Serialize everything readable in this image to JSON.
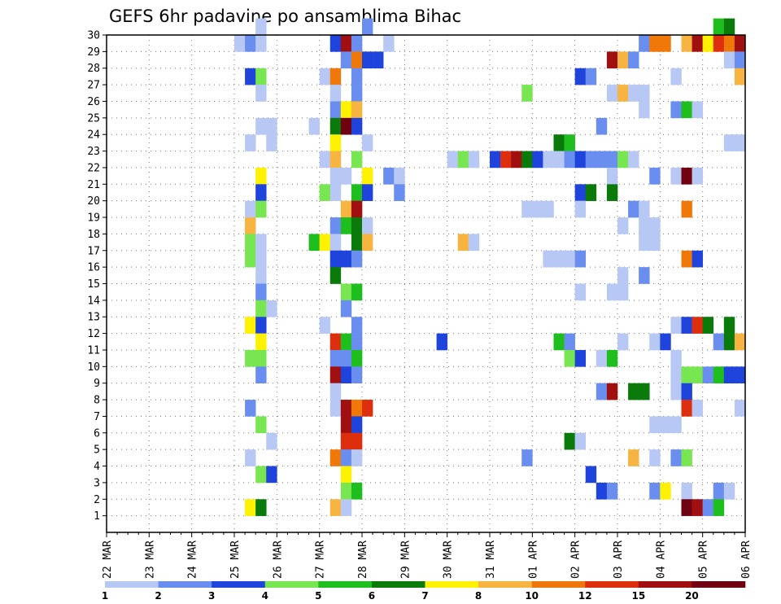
{
  "chart_data": {
    "type": "heatmap",
    "title": "GEFS 6hr padavine po ansamblima Bihac",
    "xlabel": "",
    "ylabel": "",
    "x_axis": {
      "unit": "6-hour step from 22 MAR 00Z",
      "range": [
        0,
        60
      ],
      "tick_labels": [
        "22 MAR",
        "23 MAR",
        "24 MAR",
        "25 MAR",
        "26 MAR",
        "27 MAR",
        "28 MAR",
        "29 MAR",
        "30 MAR",
        "31 MAR",
        "01 APR",
        "02 APR",
        "03 APR",
        "04 APR",
        "05 APR",
        "06 APR"
      ]
    },
    "y_axis": {
      "unit": "ensemble member",
      "range": [
        0,
        30
      ],
      "tick_labels": [
        "1",
        "2",
        "3",
        "4",
        "5",
        "6",
        "7",
        "8",
        "9",
        "10",
        "11",
        "12",
        "13",
        "14",
        "15",
        "16",
        "17",
        "18",
        "19",
        "20",
        "21",
        "22",
        "23",
        "24",
        "25",
        "26",
        "27",
        "28",
        "29",
        "30"
      ]
    },
    "grid": true,
    "color_scale": {
      "colors": [
        "#b8c8f5",
        "#6a8ef0",
        "#1f44dc",
        "#78e650",
        "#1fbe1f",
        "#0a7a0a",
        "#fff200",
        "#f8b440",
        "#f07808",
        "#dd2e0e",
        "#a01010",
        "#700010"
      ],
      "boundaries": [
        "1",
        "2",
        "3",
        "4",
        "5",
        "6",
        "7",
        "8",
        "10",
        "12",
        "15",
        "20"
      ]
    },
    "cells": [
      [
        14,
        30,
        1
      ],
      [
        24,
        30,
        4
      ],
      [
        24,
        30,
        2
      ],
      [
        57,
        30,
        5
      ],
      [
        58,
        30,
        6
      ],
      [
        12,
        29,
        1
      ],
      [
        13,
        29,
        2
      ],
      [
        14,
        29,
        1
      ],
      [
        21,
        29,
        3
      ],
      [
        22,
        29,
        11
      ],
      [
        23,
        29,
        2
      ],
      [
        26,
        29,
        1
      ],
      [
        50,
        29,
        2
      ],
      [
        51,
        29,
        9
      ],
      [
        52,
        29,
        9
      ],
      [
        54,
        29,
        8
      ],
      [
        55,
        29,
        11
      ],
      [
        56,
        29,
        7
      ],
      [
        57,
        29,
        10
      ],
      [
        58,
        29,
        9
      ],
      [
        59,
        29,
        11
      ],
      [
        22,
        28,
        2
      ],
      [
        23,
        28,
        9
      ],
      [
        24,
        28,
        3
      ],
      [
        25,
        28,
        3
      ],
      [
        47,
        28,
        11
      ],
      [
        48,
        28,
        8
      ],
      [
        49,
        28,
        2
      ],
      [
        58,
        28,
        1
      ],
      [
        59,
        28,
        2
      ],
      [
        13,
        27,
        3
      ],
      [
        14,
        27,
        4
      ],
      [
        20,
        27,
        1
      ],
      [
        21,
        27,
        9
      ],
      [
        23,
        27,
        2
      ],
      [
        44,
        27,
        3
      ],
      [
        45,
        27,
        2
      ],
      [
        53,
        27,
        1
      ],
      [
        59,
        27,
        8
      ],
      [
        14,
        26,
        1
      ],
      [
        21,
        26,
        1
      ],
      [
        23,
        26,
        2
      ],
      [
        39,
        26,
        4
      ],
      [
        47,
        26,
        1
      ],
      [
        48,
        26,
        8
      ],
      [
        49,
        26,
        1
      ],
      [
        50,
        26,
        1
      ],
      [
        21,
        25,
        2
      ],
      [
        22,
        25,
        7
      ],
      [
        23,
        25,
        8
      ],
      [
        50,
        25,
        1
      ],
      [
        53,
        25,
        2
      ],
      [
        54,
        25,
        5
      ],
      [
        55,
        25,
        1
      ],
      [
        14,
        24,
        1
      ],
      [
        15,
        24,
        1
      ],
      [
        19,
        24,
        1
      ],
      [
        21,
        24,
        6
      ],
      [
        22,
        24,
        12
      ],
      [
        23,
        24,
        3
      ],
      [
        46,
        24,
        2
      ],
      [
        13,
        23,
        1
      ],
      [
        15,
        23,
        1
      ],
      [
        21,
        23,
        7
      ],
      [
        24,
        23,
        1
      ],
      [
        42,
        23,
        6
      ],
      [
        43,
        23,
        5
      ],
      [
        58,
        23,
        1
      ],
      [
        59,
        23,
        1
      ],
      [
        20,
        22,
        1
      ],
      [
        21,
        22,
        8
      ],
      [
        23,
        22,
        4
      ],
      [
        32,
        22,
        1
      ],
      [
        33,
        22,
        4
      ],
      [
        34,
        22,
        1
      ],
      [
        36,
        22,
        3
      ],
      [
        37,
        22,
        10
      ],
      [
        38,
        22,
        11
      ],
      [
        39,
        22,
        6
      ],
      [
        40,
        22,
        3
      ],
      [
        41,
        22,
        1
      ],
      [
        42,
        22,
        1
      ],
      [
        43,
        22,
        2
      ],
      [
        44,
        22,
        3
      ],
      [
        45,
        22,
        2
      ],
      [
        46,
        22,
        2
      ],
      [
        47,
        22,
        2
      ],
      [
        48,
        22,
        4
      ],
      [
        49,
        22,
        1
      ],
      [
        14,
        21,
        7
      ],
      [
        21,
        21,
        1
      ],
      [
        22,
        21,
        1
      ],
      [
        24,
        21,
        7
      ],
      [
        26,
        21,
        2
      ],
      [
        27,
        21,
        1
      ],
      [
        47,
        21,
        1
      ],
      [
        51,
        21,
        2
      ],
      [
        53,
        21,
        1
      ],
      [
        54,
        21,
        12
      ],
      [
        55,
        21,
        1
      ],
      [
        14,
        20,
        3
      ],
      [
        20,
        20,
        4
      ],
      [
        21,
        20,
        1
      ],
      [
        23,
        20,
        5
      ],
      [
        24,
        20,
        3
      ],
      [
        27,
        20,
        2
      ],
      [
        44,
        20,
        3
      ],
      [
        45,
        20,
        6
      ],
      [
        47,
        20,
        6
      ],
      [
        13,
        19,
        1
      ],
      [
        14,
        19,
        4
      ],
      [
        22,
        19,
        8
      ],
      [
        23,
        19,
        11
      ],
      [
        39,
        19,
        1
      ],
      [
        40,
        19,
        1
      ],
      [
        41,
        19,
        1
      ],
      [
        44,
        19,
        1
      ],
      [
        49,
        19,
        2
      ],
      [
        50,
        19,
        1
      ],
      [
        54,
        19,
        9
      ],
      [
        13,
        18,
        8
      ],
      [
        21,
        18,
        2
      ],
      [
        22,
        18,
        5
      ],
      [
        23,
        18,
        6
      ],
      [
        24,
        18,
        1
      ],
      [
        48,
        18,
        1
      ],
      [
        50,
        18,
        1
      ],
      [
        51,
        18,
        1
      ],
      [
        13,
        17,
        4
      ],
      [
        14,
        17,
        1
      ],
      [
        19,
        17,
        5
      ],
      [
        20,
        17,
        7
      ],
      [
        21,
        17,
        1
      ],
      [
        23,
        17,
        6
      ],
      [
        24,
        17,
        8
      ],
      [
        33,
        17,
        8
      ],
      [
        34,
        17,
        1
      ],
      [
        50,
        17,
        1
      ],
      [
        51,
        17,
        1
      ],
      [
        13,
        16,
        4
      ],
      [
        14,
        16,
        1
      ],
      [
        21,
        16,
        3
      ],
      [
        22,
        16,
        3
      ],
      [
        23,
        16,
        2
      ],
      [
        41,
        16,
        1
      ],
      [
        42,
        16,
        1
      ],
      [
        43,
        16,
        1
      ],
      [
        44,
        16,
        2
      ],
      [
        54,
        16,
        9
      ],
      [
        55,
        16,
        3
      ],
      [
        14,
        15,
        1
      ],
      [
        21,
        15,
        6
      ],
      [
        48,
        15,
        1
      ],
      [
        50,
        15,
        2
      ],
      [
        14,
        14,
        2
      ],
      [
        22,
        14,
        4
      ],
      [
        23,
        14,
        5
      ],
      [
        44,
        14,
        1
      ],
      [
        47,
        14,
        1
      ],
      [
        48,
        14,
        1
      ],
      [
        14,
        13,
        4
      ],
      [
        15,
        13,
        1
      ],
      [
        22,
        13,
        2
      ],
      [
        13,
        12,
        7
      ],
      [
        14,
        12,
        3
      ],
      [
        20,
        12,
        1
      ],
      [
        23,
        12,
        2
      ],
      [
        53,
        12,
        1
      ],
      [
        54,
        12,
        3
      ],
      [
        55,
        12,
        10
      ],
      [
        56,
        12,
        6
      ],
      [
        58,
        12,
        6
      ],
      [
        14,
        11,
        7
      ],
      [
        21,
        11,
        10
      ],
      [
        22,
        11,
        5
      ],
      [
        23,
        11,
        2
      ],
      [
        31,
        11,
        3
      ],
      [
        42,
        11,
        5
      ],
      [
        43,
        11,
        2
      ],
      [
        48,
        11,
        1
      ],
      [
        51,
        11,
        1
      ],
      [
        52,
        11,
        3
      ],
      [
        57,
        11,
        2
      ],
      [
        58,
        11,
        6
      ],
      [
        59,
        11,
        8
      ],
      [
        13,
        10,
        4
      ],
      [
        14,
        10,
        4
      ],
      [
        21,
        10,
        2
      ],
      [
        22,
        10,
        2
      ],
      [
        23,
        10,
        5
      ],
      [
        43,
        10,
        4
      ],
      [
        44,
        10,
        3
      ],
      [
        46,
        10,
        1
      ],
      [
        47,
        10,
        5
      ],
      [
        53,
        10,
        1
      ],
      [
        14,
        9,
        2
      ],
      [
        21,
        9,
        11
      ],
      [
        22,
        9,
        3
      ],
      [
        23,
        9,
        2
      ],
      [
        53,
        9,
        1
      ],
      [
        54,
        9,
        4
      ],
      [
        55,
        9,
        4
      ],
      [
        56,
        9,
        2
      ],
      [
        57,
        9,
        5
      ],
      [
        58,
        9,
        3
      ],
      [
        59,
        9,
        3
      ],
      [
        21,
        8,
        1
      ],
      [
        46,
        8,
        2
      ],
      [
        47,
        8,
        11
      ],
      [
        49,
        8,
        6
      ],
      [
        50,
        8,
        6
      ],
      [
        53,
        8,
        1
      ],
      [
        54,
        8,
        3
      ],
      [
        13,
        7,
        2
      ],
      [
        21,
        7,
        1
      ],
      [
        22,
        7,
        11
      ],
      [
        23,
        7,
        9
      ],
      [
        24,
        7,
        10
      ],
      [
        54,
        7,
        10
      ],
      [
        55,
        7,
        1
      ],
      [
        59,
        7,
        1
      ],
      [
        14,
        6,
        4
      ],
      [
        22,
        6,
        11
      ],
      [
        23,
        6,
        3
      ],
      [
        51,
        6,
        1
      ],
      [
        52,
        6,
        1
      ],
      [
        53,
        6,
        1
      ],
      [
        15,
        5,
        1
      ],
      [
        22,
        5,
        10
      ],
      [
        23,
        5,
        10
      ],
      [
        43,
        5,
        6
      ],
      [
        44,
        5,
        1
      ],
      [
        13,
        4,
        1
      ],
      [
        21,
        4,
        9
      ],
      [
        22,
        4,
        2
      ],
      [
        23,
        4,
        1
      ],
      [
        39,
        4,
        2
      ],
      [
        49,
        4,
        8
      ],
      [
        51,
        4,
        1
      ],
      [
        53,
        4,
        2
      ],
      [
        54,
        4,
        4
      ],
      [
        14,
        3,
        4
      ],
      [
        15,
        3,
        3
      ],
      [
        22,
        3,
        7
      ],
      [
        45,
        3,
        3
      ],
      [
        22,
        2,
        4
      ],
      [
        23,
        2,
        5
      ],
      [
        46,
        2,
        3
      ],
      [
        47,
        2,
        2
      ],
      [
        51,
        2,
        2
      ],
      [
        52,
        2,
        7
      ],
      [
        54,
        2,
        1
      ],
      [
        57,
        2,
        2
      ],
      [
        58,
        2,
        1
      ],
      [
        13,
        1,
        7
      ],
      [
        14,
        1,
        6
      ],
      [
        21,
        1,
        8
      ],
      [
        22,
        1,
        1
      ],
      [
        54,
        1,
        12
      ],
      [
        55,
        1,
        11
      ],
      [
        56,
        1,
        2
      ],
      [
        57,
        1,
        5
      ]
    ]
  }
}
